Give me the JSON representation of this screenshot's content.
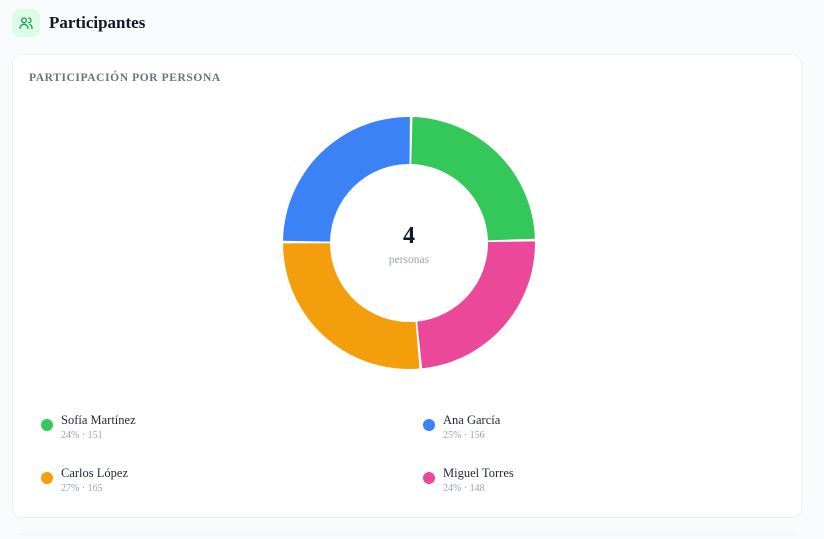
{
  "section": {
    "title": "Participantes",
    "icon": "users-icon"
  },
  "card": {
    "title": "PARTICIPACIÓN POR PERSONA"
  },
  "chart_data": {
    "type": "pie",
    "variant": "donut",
    "title": "PARTICIPACIÓN POR PERSONA",
    "center_value": "4",
    "center_label": "personas",
    "slices": [
      {
        "name": "Sofía Martínez",
        "value": 151,
        "percent_label": "24%",
        "stats": "24% · 151",
        "color": "#34c759"
      },
      {
        "name": "Miguel Torres",
        "value": 148,
        "percent_label": "24%",
        "stats": "24% · 148",
        "color": "#ec4899"
      },
      {
        "name": "Carlos López",
        "value": 165,
        "percent_label": "27%",
        "stats": "27% · 165",
        "color": "#f59e0b"
      },
      {
        "name": "Ana García",
        "value": 156,
        "percent_label": "25%",
        "stats": "25% · 156",
        "color": "#3b82f6"
      }
    ],
    "legend_order": [
      0,
      3,
      2,
      1
    ]
  }
}
